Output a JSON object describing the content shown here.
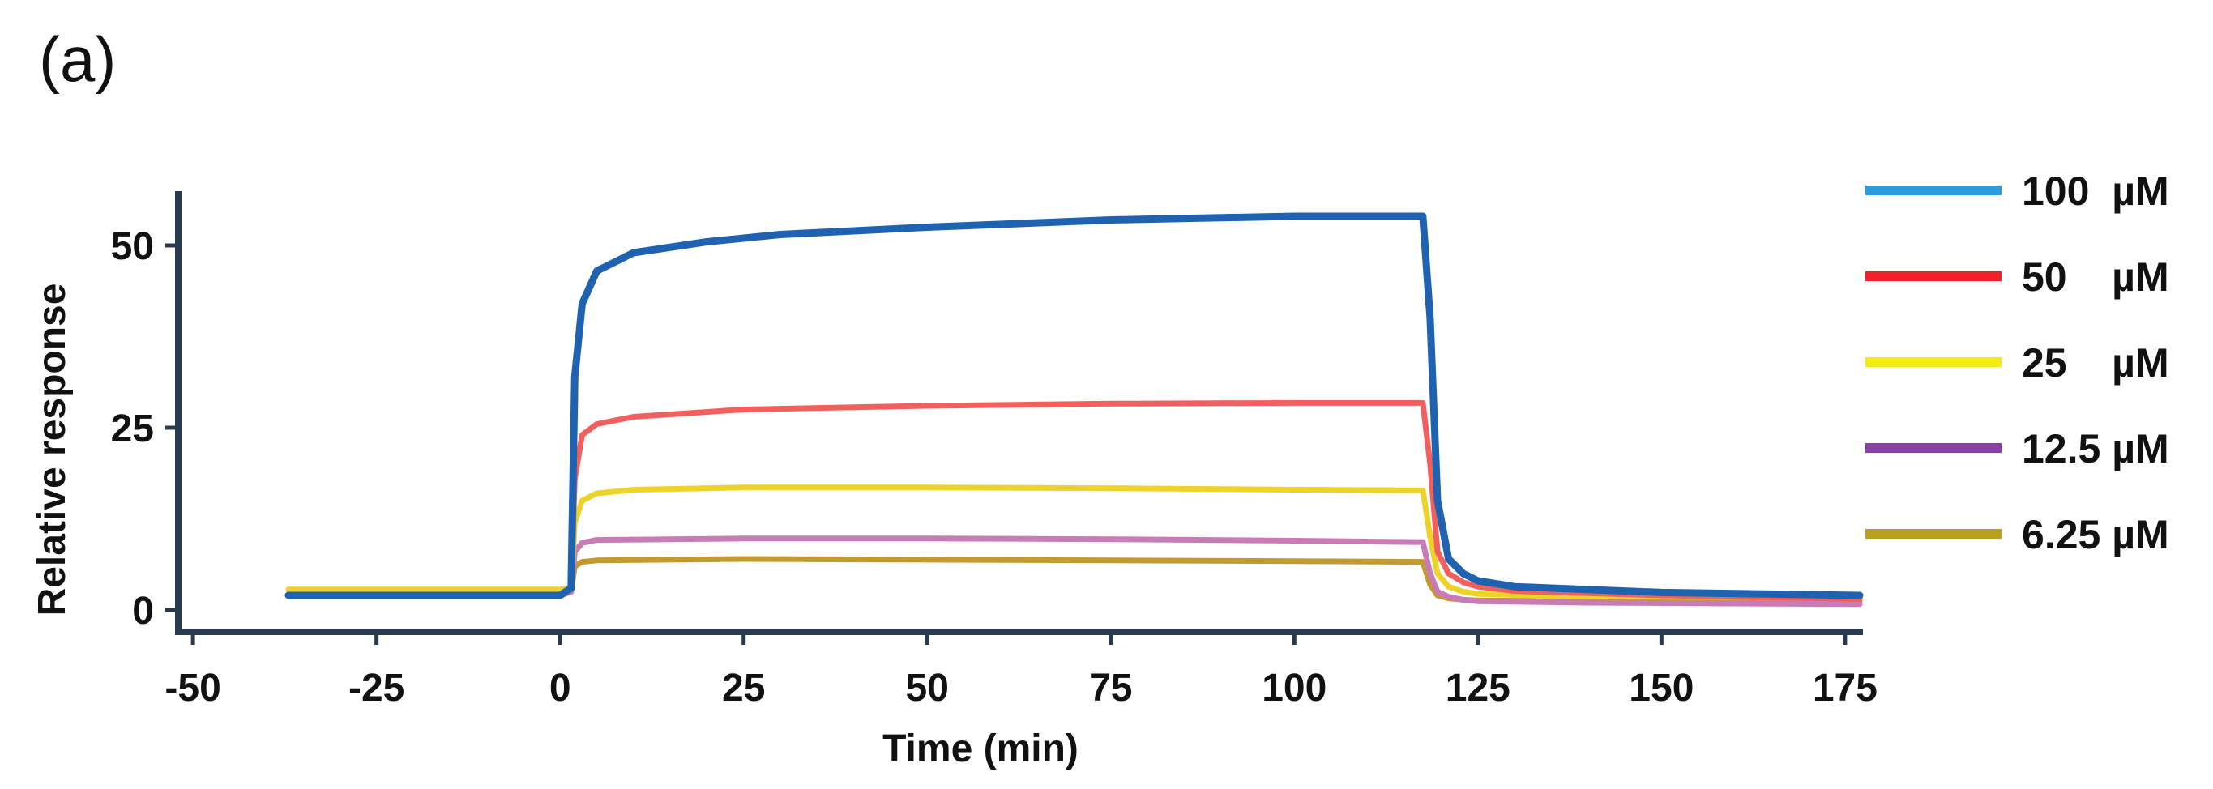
{
  "panel_label": "(a)",
  "chart_data": {
    "type": "line",
    "xlabel": "Time (min)",
    "ylabel": "Relative response",
    "xlim": [
      -52,
      177
    ],
    "ylim": [
      -3,
      57
    ],
    "xticks": [
      -50,
      -25,
      0,
      25,
      50,
      75,
      100,
      125,
      150,
      175
    ],
    "yticks": [
      0,
      25,
      50
    ],
    "legend_position": "right",
    "series": [
      {
        "name": "100  µM",
        "color": "#1f63b0",
        "legend_color": "#2a9de0",
        "width": 9,
        "x": [
          -37,
          0,
          1.5,
          2,
          3,
          5,
          10,
          20,
          30,
          50,
          75,
          100,
          115,
          117.5,
          118.5,
          119.5,
          121,
          123,
          125,
          130,
          150,
          177
        ],
        "y": [
          2,
          2,
          3,
          32,
          42,
          46.5,
          49,
          50.5,
          51.5,
          52.5,
          53.5,
          54,
          54,
          54,
          40,
          15,
          7,
          5,
          4,
          3.2,
          2.4,
          2
        ]
      },
      {
        "name": "50    µM",
        "color": "#f2605e",
        "legend_color": "#f2202a",
        "width": 7,
        "x": [
          0,
          1.5,
          2,
          3,
          5,
          10,
          25,
          50,
          75,
          100,
          117.5,
          118.5,
          119.5,
          121,
          123,
          125,
          130,
          150,
          177
        ],
        "y": [
          2,
          3,
          18,
          24,
          25.5,
          26.5,
          27.5,
          28,
          28.3,
          28.4,
          28.4,
          20,
          8,
          5,
          3.8,
          3.2,
          2.6,
          2,
          1.5
        ]
      },
      {
        "name": "25    µM",
        "color": "#ecd229",
        "legend_color": "#f3ea1a",
        "width": 7,
        "x": [
          -37,
          0,
          1.5,
          2,
          3,
          5,
          10,
          25,
          50,
          75,
          100,
          117.5,
          118.5,
          119.5,
          121,
          123,
          125,
          135,
          177
        ],
        "y": [
          2.8,
          2.8,
          3,
          12,
          15,
          16,
          16.5,
          16.8,
          16.8,
          16.7,
          16.5,
          16.4,
          10,
          5,
          3.2,
          2.5,
          2.2,
          1.9,
          1.7
        ]
      },
      {
        "name": "12.5 µM",
        "color": "#c87bb5",
        "legend_color": "#8a3fa8",
        "width": 7,
        "x": [
          0,
          1.5,
          2,
          3,
          5,
          25,
          50,
          75,
          100,
          117.5,
          118.5,
          119.5,
          121,
          123,
          125,
          140,
          177
        ],
        "y": [
          2,
          2.5,
          8,
          9.2,
          9.6,
          9.8,
          9.8,
          9.7,
          9.5,
          9.3,
          5,
          2.5,
          1.8,
          1.4,
          1.2,
          1,
          0.8
        ]
      },
      {
        "name": "6.25 µM",
        "color": "#c29a30",
        "legend_color": "#b8a11c",
        "width": 7,
        "x": [
          0,
          1.5,
          2,
          3,
          5,
          25,
          50,
          75,
          100,
          117.5,
          118.5,
          119.5,
          121,
          123,
          125,
          140,
          177
        ],
        "y": [
          2,
          2.5,
          6,
          6.6,
          6.8,
          7,
          6.9,
          6.8,
          6.7,
          6.6,
          3.5,
          2,
          1.6,
          1.4,
          1.3,
          1.2,
          1.2
        ]
      }
    ]
  }
}
